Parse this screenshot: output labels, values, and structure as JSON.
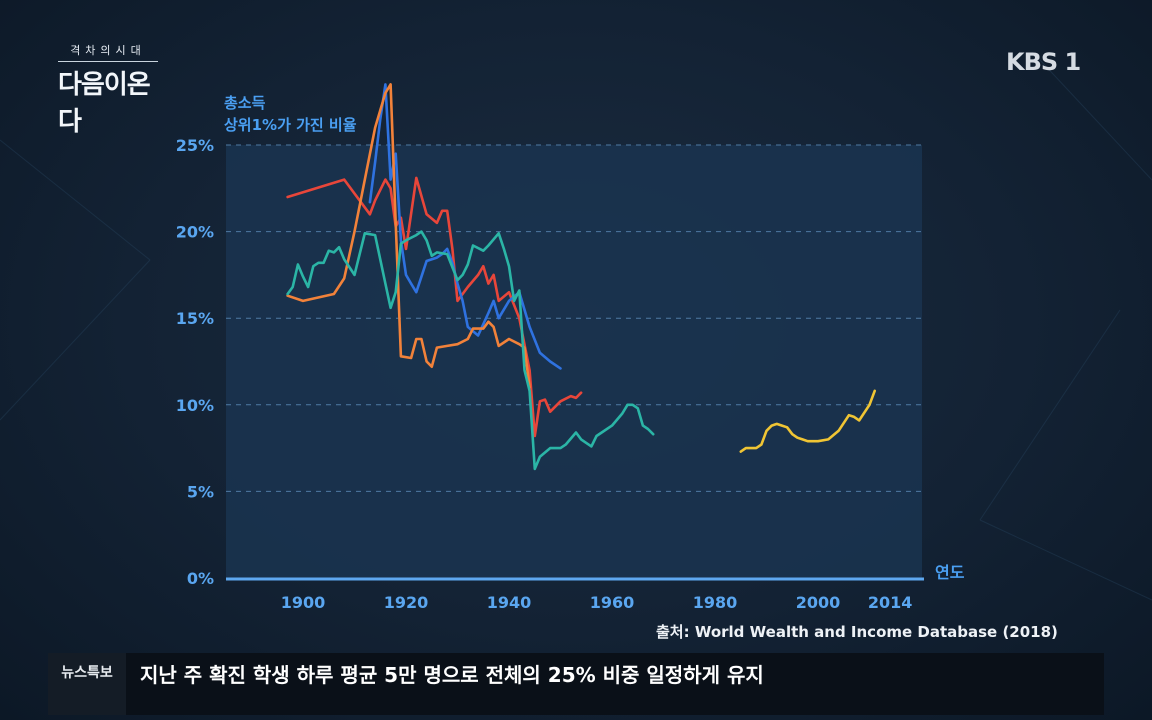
{
  "show": {
    "small_title": "격차의시대",
    "big_title": "다음이온다"
  },
  "broadcaster": {
    "logo": "KBS 1"
  },
  "chart_data": {
    "type": "line",
    "title": "",
    "ylabel": "총소득\n상위1%가 가진 비율",
    "ylabel_lines": [
      "총소득",
      "상위1%가 가진 비율"
    ],
    "xlabel": "연도",
    "xlim": [
      1880,
      2014
    ],
    "ylim": [
      0,
      25
    ],
    "x_ticks": [
      1900,
      1920,
      1940,
      1960,
      1980,
      2000,
      2014
    ],
    "y_ticks": [
      0,
      5,
      10,
      15,
      20,
      25
    ],
    "y_tick_labels": [
      "0%",
      "5%",
      "10%",
      "15%",
      "20%",
      "25%"
    ],
    "grid": "horizontal-dashed",
    "series": [
      {
        "color": "#e8463a",
        "points": [
          [
            1897,
            22
          ],
          [
            1908,
            23
          ],
          [
            1913,
            21
          ],
          [
            1914,
            21.8
          ],
          [
            1916,
            23
          ],
          [
            1917,
            22.5
          ],
          [
            1918,
            20.3
          ],
          [
            1919,
            20.8
          ],
          [
            1920,
            19
          ],
          [
            1922,
            23.1
          ],
          [
            1924,
            21
          ],
          [
            1926,
            20.5
          ],
          [
            1927,
            21.2
          ],
          [
            1928,
            21.2
          ],
          [
            1929,
            19
          ],
          [
            1930,
            16
          ],
          [
            1932,
            16.8
          ],
          [
            1934,
            17.5
          ],
          [
            1935,
            18
          ],
          [
            1936,
            17
          ],
          [
            1937,
            17.5
          ],
          [
            1938,
            16
          ],
          [
            1940,
            16.5
          ],
          [
            1942,
            15
          ],
          [
            1944,
            12
          ],
          [
            1945,
            8.2
          ],
          [
            1946,
            10.2
          ],
          [
            1947,
            10.3
          ],
          [
            1948,
            9.6
          ],
          [
            1950,
            10.2
          ],
          [
            1952,
            10.5
          ],
          [
            1953,
            10.4
          ],
          [
            1954,
            10.7
          ]
        ]
      },
      {
        "color": "#2f72e0",
        "points": [
          [
            1913,
            21.7
          ],
          [
            1914,
            24
          ],
          [
            1915,
            26.5
          ],
          [
            1916,
            28.5
          ],
          [
            1917,
            23
          ],
          [
            1918,
            24.5
          ],
          [
            1919,
            19.5
          ],
          [
            1920,
            17.5
          ],
          [
            1921,
            17
          ],
          [
            1922,
            16.5
          ],
          [
            1924,
            18.3
          ],
          [
            1926,
            18.5
          ],
          [
            1927,
            18.7
          ],
          [
            1928,
            19
          ],
          [
            1929,
            18.2
          ],
          [
            1930,
            17
          ],
          [
            1931,
            16
          ],
          [
            1932,
            14.5
          ],
          [
            1934,
            14
          ],
          [
            1936,
            15.3
          ],
          [
            1937,
            16
          ],
          [
            1938,
            15
          ],
          [
            1940,
            16
          ],
          [
            1942,
            16.5
          ],
          [
            1944,
            14.5
          ],
          [
            1946,
            13
          ],
          [
            1948,
            12.5
          ],
          [
            1950,
            12.1
          ]
        ]
      },
      {
        "color": "#f2823a",
        "points": [
          [
            1897,
            16.3
          ],
          [
            1900,
            16
          ],
          [
            1906,
            16.4
          ],
          [
            1908,
            17.3
          ],
          [
            1910,
            20
          ],
          [
            1914,
            26
          ],
          [
            1916,
            28
          ],
          [
            1917,
            28.5
          ],
          [
            1918,
            20.5
          ],
          [
            1919,
            12.8
          ],
          [
            1921,
            12.7
          ],
          [
            1922,
            13.8
          ],
          [
            1923,
            13.8
          ],
          [
            1924,
            12.5
          ],
          [
            1925,
            12.2
          ],
          [
            1926,
            13.3
          ],
          [
            1928,
            13.4
          ],
          [
            1930,
            13.5
          ],
          [
            1932,
            13.8
          ],
          [
            1933,
            14.4
          ],
          [
            1935,
            14.4
          ],
          [
            1936,
            14.8
          ],
          [
            1937,
            14.5
          ],
          [
            1938,
            13.4
          ],
          [
            1940,
            13.8
          ],
          [
            1942,
            13.5
          ],
          [
            1943,
            13.3
          ],
          [
            1944,
            11
          ]
        ]
      },
      {
        "color": "#2bb5a6",
        "points": [
          [
            1897,
            16.4
          ],
          [
            1898,
            16.8
          ],
          [
            1899,
            18.1
          ],
          [
            1900,
            17.4
          ],
          [
            1901,
            16.8
          ],
          [
            1902,
            18
          ],
          [
            1903,
            18.2
          ],
          [
            1904,
            18.2
          ],
          [
            1905,
            18.9
          ],
          [
            1906,
            18.8
          ],
          [
            1907,
            19.1
          ],
          [
            1908,
            18.4
          ],
          [
            1910,
            17.5
          ],
          [
            1912,
            19.9
          ],
          [
            1914,
            19.8
          ],
          [
            1916,
            17
          ],
          [
            1917,
            15.6
          ],
          [
            1918,
            16.5
          ],
          [
            1919,
            19.3
          ],
          [
            1920,
            19.5
          ],
          [
            1922,
            19.8
          ],
          [
            1923,
            20
          ],
          [
            1924,
            19.5
          ],
          [
            1925,
            18.6
          ],
          [
            1926,
            18.8
          ],
          [
            1928,
            18.7
          ],
          [
            1930,
            17.2
          ],
          [
            1931,
            17.5
          ],
          [
            1932,
            18.1
          ],
          [
            1933,
            19.2
          ],
          [
            1935,
            18.9
          ],
          [
            1936,
            19.2
          ],
          [
            1938,
            19.9
          ],
          [
            1939,
            19
          ],
          [
            1940,
            18
          ],
          [
            1941,
            16
          ],
          [
            1942,
            16.6
          ],
          [
            1943,
            12
          ],
          [
            1944,
            10.8
          ],
          [
            1945,
            6.3
          ],
          [
            1946,
            7
          ],
          [
            1948,
            7.5
          ],
          [
            1950,
            7.5
          ],
          [
            1951,
            7.7
          ],
          [
            1953,
            8.4
          ],
          [
            1954,
            8
          ],
          [
            1956,
            7.6
          ],
          [
            1957,
            8.2
          ],
          [
            1958,
            8.4
          ],
          [
            1960,
            8.8
          ],
          [
            1962,
            9.5
          ],
          [
            1963,
            10
          ],
          [
            1964,
            10
          ],
          [
            1965,
            9.8
          ],
          [
            1966,
            8.8
          ],
          [
            1967,
            8.6
          ],
          [
            1968,
            8.3
          ]
        ]
      },
      {
        "color": "#f0c534",
        "points": [
          [
            1985,
            7.3
          ],
          [
            1986,
            7.5
          ],
          [
            1988,
            7.5
          ],
          [
            1989,
            7.7
          ],
          [
            1990,
            8.5
          ],
          [
            1991,
            8.8
          ],
          [
            1992,
            8.9
          ],
          [
            1993,
            8.8
          ],
          [
            1994,
            8.7
          ],
          [
            1995,
            8.3
          ],
          [
            1996,
            8.1
          ],
          [
            1997,
            8
          ],
          [
            1998,
            7.9
          ],
          [
            2000,
            7.9
          ],
          [
            2002,
            8
          ],
          [
            2004,
            8.5
          ],
          [
            2006,
            9.4
          ],
          [
            2007,
            9.3
          ],
          [
            2008,
            9.1
          ],
          [
            2010,
            10
          ],
          [
            2011,
            10.8
          ]
        ]
      }
    ]
  },
  "source": "출처: World Wealth and Income Database (2018)",
  "ticker": {
    "label": "뉴스특보",
    "text": "지난 주 확진 학생 하루 평균 5만 명으로 전체의 25% 비중 일정하게 유지"
  }
}
